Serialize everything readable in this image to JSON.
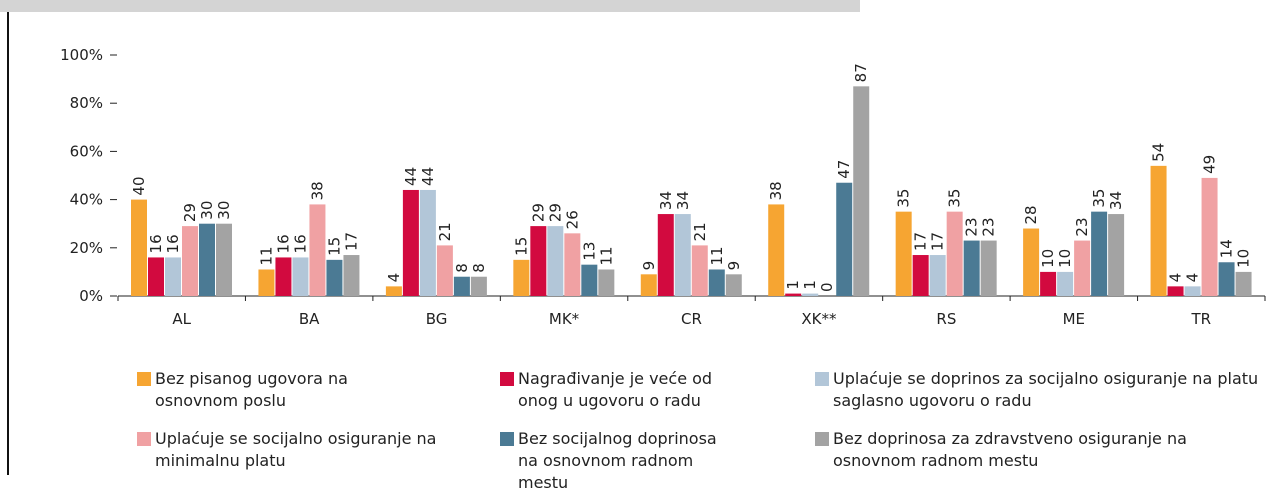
{
  "chart_data": {
    "type": "bar",
    "categories": [
      "AL",
      "BA",
      "BG",
      "MK*",
      "CR",
      "XK**",
      "RS",
      "ME",
      "TR"
    ],
    "series": [
      {
        "name": "Bez pisanog ugovora na osnovnom poslu",
        "color": "#f6a532",
        "values": [
          40,
          11,
          4,
          15,
          9,
          38,
          35,
          28,
          54
        ]
      },
      {
        "name": "Nagrađivanje je veće od onog u ugovoru o radu",
        "color": "#d20a3f",
        "values": [
          16,
          16,
          44,
          29,
          34,
          1,
          17,
          10,
          4
        ]
      },
      {
        "name": "Uplaćuje se doprinos za socijalno osiguranje na platu saglasno ugovoru o radu",
        "color": "#b2c6d8",
        "values": [
          16,
          16,
          44,
          29,
          34,
          1,
          17,
          10,
          4
        ]
      },
      {
        "name": "Uplaćuje se socijalno osiguranje na minimalnu platu",
        "color": "#f0a1a3",
        "values": [
          29,
          38,
          21,
          26,
          21,
          0,
          35,
          23,
          49
        ]
      },
      {
        "name": "Bez socijalnog doprinosa na osnovnom radnom mestu",
        "color": "#4b7a94",
        "values": [
          30,
          15,
          8,
          13,
          11,
          47,
          23,
          35,
          14
        ]
      },
      {
        "name": "Bez doprinosa za zdravstveno osiguranje na osnovnom radnom mestu",
        "color": "#a3a3a3",
        "values": [
          30,
          17,
          8,
          11,
          9,
          87,
          23,
          34,
          10
        ]
      }
    ],
    "ylim": [
      0,
      100
    ],
    "yticks": [
      {
        "value": 0,
        "label": "0%"
      },
      {
        "value": 20,
        "label": "20%"
      },
      {
        "value": 40,
        "label": "40%"
      },
      {
        "value": 60,
        "label": "60%"
      },
      {
        "value": 80,
        "label": "80%"
      },
      {
        "value": 100,
        "label": "100%"
      }
    ],
    "legend": "bottom"
  }
}
